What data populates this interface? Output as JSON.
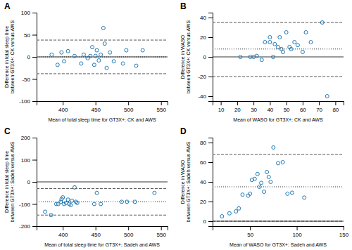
{
  "chart_data": [
    {
      "type": "scatter",
      "title": "A",
      "x": [
        383,
        392,
        398,
        402,
        408,
        418,
        428,
        432,
        438,
        442,
        445,
        448,
        450,
        452,
        455,
        458,
        462,
        464,
        467,
        472,
        478,
        492,
        497,
        512,
        522
      ],
      "values": [
        5,
        -18,
        10,
        -10,
        13,
        2,
        -15,
        5,
        -3,
        2,
        22,
        -18,
        2,
        15,
        -8,
        5,
        65,
        30,
        -25,
        10,
        -10,
        -15,
        15,
        -20,
        15
      ],
      "baseline": 0,
      "bias": 0,
      "upper_loa": 38,
      "lower_loa": -38,
      "xlim": [
        360,
        560
      ],
      "ylim": [
        -100,
        100
      ],
      "xticks": [
        400,
        450,
        500,
        550
      ],
      "yticks": [
        -100,
        -50,
        0,
        50,
        100
      ],
      "xlabel": "Mean of total sleep time for GT3X+: CK and AWS",
      "ylabel": "Difference in total sleep time\nbetween GT3X+: CK versus AWS"
    },
    {
      "type": "scatter",
      "title": "B",
      "x": [
        22,
        28,
        30,
        32,
        35,
        37,
        40,
        40,
        42,
        43,
        45,
        46,
        47,
        48,
        50,
        52,
        53,
        55,
        57,
        60,
        62,
        65,
        72,
        75
      ],
      "values": [
        0,
        0,
        0,
        1,
        -3,
        15,
        15,
        20,
        0,
        13,
        10,
        20,
        8,
        5,
        25,
        10,
        8,
        15,
        12,
        5,
        25,
        15,
        35,
        -40
      ],
      "baseline": 0,
      "bias": 8,
      "upper_loa": 35,
      "lower_loa": -20,
      "xlim": [
        5,
        85
      ],
      "ylim": [
        -45,
        45
      ],
      "xticks": [
        10,
        20,
        30,
        40,
        50,
        60,
        70,
        80
      ],
      "yticks": [
        -40,
        -20,
        0,
        20,
        40
      ],
      "xlabel": "Mean of WASO for GT3X+: CK and AWS",
      "ylabel": "Difference in WASO\nbetween GT3X+: CK versus AWS"
    },
    {
      "type": "scatter",
      "title": "C",
      "x": [
        373,
        382,
        390,
        393,
        397,
        398,
        400,
        402,
        405,
        408,
        410,
        412,
        414,
        418,
        420,
        422,
        448,
        452,
        458,
        490,
        498,
        510,
        540
      ],
      "values": [
        -135,
        -150,
        -100,
        -100,
        -90,
        -78,
        -70,
        -100,
        -95,
        -80,
        -100,
        -105,
        -85,
        -25,
        -90,
        -95,
        -100,
        -50,
        -100,
        -90,
        -90,
        -90,
        -50
      ],
      "baseline": 0,
      "bias": -90,
      "upper_loa": -30,
      "lower_loa": -150,
      "xlim": [
        360,
        560
      ],
      "ylim": [
        -200,
        200
      ],
      "xticks": [
        400,
        450,
        500,
        550
      ],
      "yticks": [
        -200,
        -100,
        0,
        100,
        200
      ],
      "xlabel": "Mean of total sleep time for GT3X+: Sadeh and AWS",
      "ylabel": "Difference in total sleep time\nbetween GT3X+: Sadeh versus AWS"
    },
    {
      "type": "scatter",
      "title": "D",
      "x": [
        20,
        28,
        35,
        38,
        42,
        48,
        50,
        52,
        55,
        58,
        60,
        62,
        65,
        68,
        70,
        72,
        75,
        80,
        85,
        90,
        95,
        108
      ],
      "values": [
        5,
        8,
        10,
        13,
        27,
        26,
        28,
        42,
        43,
        48,
        35,
        39,
        30,
        50,
        45,
        40,
        75,
        59,
        60,
        28,
        29,
        24
      ],
      "baseline": 0,
      "bias": 35,
      "upper_loa": 68,
      "lower_loa": 0,
      "xlim": [
        10,
        150
      ],
      "ylim": [
        -5,
        85
      ],
      "xticks": [
        50,
        100,
        150
      ],
      "yticks": [
        0,
        20,
        40,
        60,
        80
      ],
      "xlabel": "Mean of WASO for GT3X+: Sadeh and AWS",
      "ylabel": "Difference in WASO\nbetween GT3X+: Sadeh versus AWS"
    }
  ]
}
